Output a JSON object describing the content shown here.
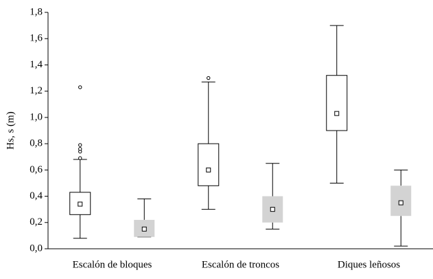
{
  "chart_data": {
    "type": "box",
    "ylabel": "Hs, s (m)",
    "categories": [
      "Escalón de bloques",
      "Escalón de troncos",
      "Diques leñosos"
    ],
    "ylim": [
      0,
      1.8
    ],
    "yticks": [
      {
        "value": 0,
        "label": "0,0"
      },
      {
        "value": 0.2,
        "label": "0,2"
      },
      {
        "value": 0.4,
        "label": "0,4"
      },
      {
        "value": 0.6,
        "label": "0,6"
      },
      {
        "value": 0.8,
        "label": "0,8"
      },
      {
        "value": 1,
        "label": "1,0"
      },
      {
        "value": 1.2,
        "label": "1,2"
      },
      {
        "value": 1.4,
        "label": "1,4"
      },
      {
        "value": 1.6,
        "label": "1,6"
      },
      {
        "value": 1.8,
        "label": "1,8"
      }
    ],
    "series": [
      {
        "color": "#ffffff",
        "min": [
          0.08,
          0.3,
          0.5
        ],
        "q1": [
          0.26,
          0.48,
          0.9
        ],
        "median": [
          0.34,
          0.6,
          1.03
        ],
        "q3": [
          0.43,
          0.8,
          1.32
        ],
        "max": [
          0.68,
          1.27,
          1.7
        ],
        "outliers": [
          [
            0.69,
            0.74,
            0.76,
            0.79,
            1.23
          ],
          [
            1.3
          ],
          []
        ]
      },
      {
        "color": "#d3d3d3",
        "min": [
          0.09,
          0.15,
          0.02
        ],
        "q1": [
          0.09,
          0.2,
          0.25
        ],
        "median": [
          0.15,
          0.3,
          0.35
        ],
        "q3": [
          0.22,
          0.4,
          0.48
        ],
        "max": [
          0.38,
          0.65,
          0.6
        ],
        "outliers": [
          [],
          [],
          []
        ]
      }
    ]
  }
}
